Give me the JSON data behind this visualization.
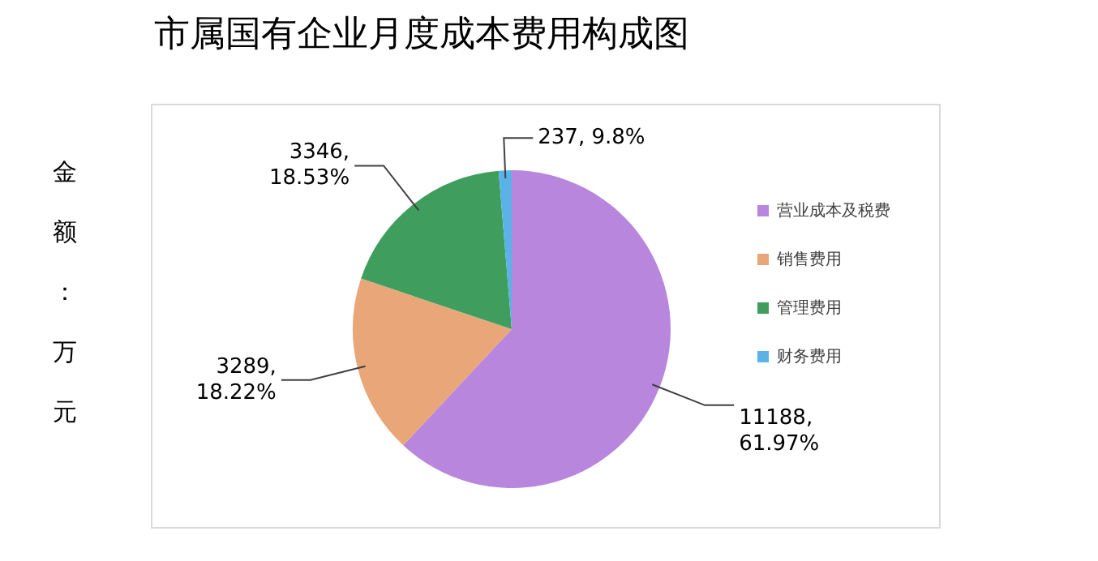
{
  "chart_data": {
    "type": "pie",
    "title": "市属国有企业月度成本费用构成图",
    "ylabel": "金额：万元",
    "categories": [
      "营业成本及税费",
      "销售费用",
      "管理费用",
      "财务费用"
    ],
    "values": [
      11188,
      3289,
      3346,
      237
    ],
    "colors": [
      "#b886dc",
      "#e9a679",
      "#3f9e5e",
      "#5ab2e6"
    ],
    "value_labels": [
      "11188,\n61.97%",
      "3289,\n18.22%",
      "3346,\n18.53%",
      "237, 9.8%"
    ],
    "legend": "right"
  }
}
